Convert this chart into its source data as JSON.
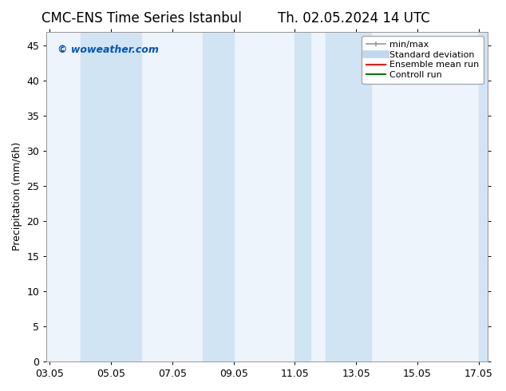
{
  "title_left": "CMC-ENS Time Series Istanbul",
  "title_right": "Th. 02.05.2024 14 UTC",
  "ylabel": "Precipitation (mm/6h)",
  "xlabel": "",
  "ylim": [
    0,
    47
  ],
  "yticks": [
    0,
    5,
    10,
    15,
    20,
    25,
    30,
    35,
    40,
    45
  ],
  "xtick_labels": [
    "03.05",
    "05.05",
    "07.05",
    "09.05",
    "11.05",
    "13.05",
    "15.05",
    "17.05"
  ],
  "xtick_positions": [
    0,
    2,
    4,
    6,
    8,
    10,
    12,
    14
  ],
  "watermark": "© woweather.com",
  "watermark_color": "#0055bb",
  "bg_color": "#ffffff",
  "plot_bg_color": "#eef4fb",
  "shaded_bands": [
    {
      "x_start": 1.0,
      "x_end": 3.0,
      "color": "#d0e4f4"
    },
    {
      "x_start": 5.0,
      "x_end": 6.0,
      "color": "#d0e4f4"
    },
    {
      "x_start": 8.0,
      "x_end": 8.5,
      "color": "#d0e4f4"
    },
    {
      "x_start": 9.0,
      "x_end": 10.5,
      "color": "#d0e4f4"
    },
    {
      "x_start": 14.0,
      "x_end": 14.3,
      "color": "#d0e4f4"
    }
  ],
  "legend_entries": [
    {
      "label": "min/max",
      "color": "#999999",
      "lw": 1.2
    },
    {
      "label": "Standard deviation",
      "color": "#c0d8ef",
      "lw": 7
    },
    {
      "label": "Ensemble mean run",
      "color": "#ff0000",
      "lw": 1.5
    },
    {
      "label": "Controll run",
      "color": "#007700",
      "lw": 1.5
    }
  ],
  "title_fontsize": 12,
  "tick_fontsize": 9,
  "legend_fontsize": 8,
  "ylabel_fontsize": 9,
  "spine_color": "#999999",
  "xlim": [
    -0.1,
    14.3
  ]
}
